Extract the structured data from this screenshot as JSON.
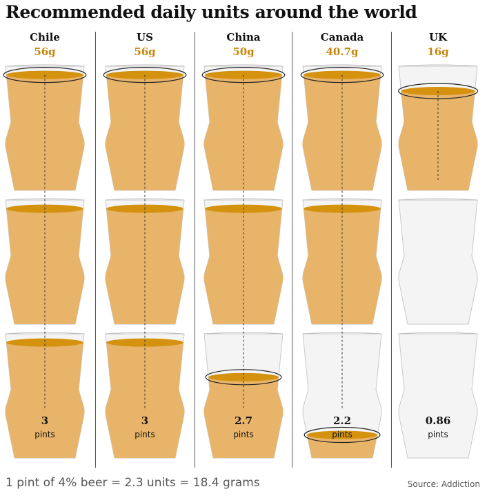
{
  "title": "Recommended daily units around the world",
  "colors": {
    "beer": "#e8b46a",
    "foam": "#d4920e",
    "accent": "#c8860a",
    "glass": "#f4f4f4"
  },
  "chart_data": {
    "type": "pictogram",
    "title": "Recommended daily units around the world",
    "glasses_per_country": 3,
    "series": [
      {
        "country": "Chile",
        "grams": "56g",
        "pints": 3,
        "pints_label": "3"
      },
      {
        "country": "US",
        "grams": "56g",
        "pints": 3,
        "pints_label": "3"
      },
      {
        "country": "China",
        "grams": "50g",
        "pints": 2.7,
        "pints_label": "2.7"
      },
      {
        "country": "Canada",
        "grams": "40.7g",
        "pints": 2.2,
        "pints_label": "2.2"
      },
      {
        "country": "UK",
        "grams": "16g",
        "pints": 0.86,
        "pints_label": "0.86"
      }
    ],
    "unit_label": "pints"
  },
  "footer": {
    "note": "1 pint of 4% beer = 2.3 units = 18.4 grams",
    "source": "Source: Addiction"
  }
}
